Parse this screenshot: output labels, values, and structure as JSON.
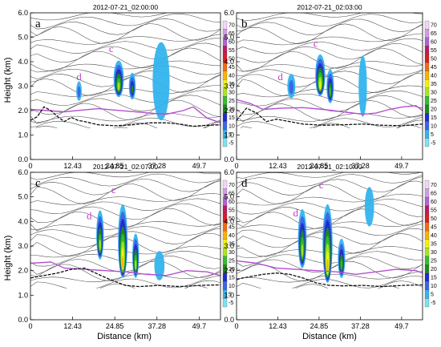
{
  "figure": {
    "y_axis_label": "Height (km)",
    "x_axis_label": "Distance (km)",
    "x_ticks": [
      "0",
      "12.43",
      "24.85",
      "37.28",
      "49.7"
    ],
    "x_tick_values": [
      0,
      12.43,
      24.85,
      37.28,
      49.7
    ],
    "y_ticks": [
      "0.0",
      "1.0",
      "2.0",
      "3.0",
      "4.0",
      "5.0",
      "6.0"
    ],
    "y_tick_values": [
      0,
      1,
      2,
      3,
      4,
      5,
      6
    ]
  },
  "colorbar": {
    "labels": [
      "70",
      "65",
      "60",
      "55",
      "50",
      "45",
      "40",
      "35",
      "30",
      "25",
      "20",
      "15",
      "10",
      "5",
      "-5"
    ],
    "levels": [
      70,
      65,
      60,
      55,
      50,
      45,
      40,
      35,
      30,
      25,
      20,
      15,
      10,
      5,
      -5
    ],
    "colors": [
      "#f2d5f7",
      "#d59ae8",
      "#b061d6",
      "#c0185c",
      "#e01b1b",
      "#f56a10",
      "#f5b400",
      "#f2f20a",
      "#a9e61f",
      "#2fbf2a",
      "#1a8c1a",
      "#1f2bc9",
      "#3b64e6",
      "#32b4ee",
      "#7de2f2"
    ]
  },
  "chart_data": [
    {
      "type": "heatmap",
      "title": "2012-07-21_02:00:00",
      "panel_letter": "a",
      "cell_labels": [
        {
          "text": "c",
          "x": 23.8,
          "y": 4.4
        },
        {
          "text": "d",
          "x": 14.3,
          "y": 3.25
        }
      ],
      "xlabel": "Distance (km)",
      "ylabel": "Height (km)",
      "xlim": [
        0,
        56
      ],
      "ylim": [
        0,
        6
      ],
      "cells": [
        {
          "x": 26.0,
          "y": 3.3,
          "w": 3.0,
          "h": 1.5,
          "level": 30
        },
        {
          "x": 30.0,
          "y": 3.0,
          "w": 2.0,
          "h": 1.1,
          "level": 20
        },
        {
          "x": 14.3,
          "y": 2.8,
          "w": 1.6,
          "h": 0.8,
          "level": 10
        },
        {
          "x": 38.5,
          "y": 3.2,
          "w": 5.0,
          "h": 3.2,
          "level": 5
        }
      ],
      "pbl_line_pink": [
        [
          0,
          2.05
        ],
        [
          5,
          2.0
        ],
        [
          10,
          1.95
        ],
        [
          15,
          2.02
        ],
        [
          20,
          2.08
        ],
        [
          25,
          2.02
        ],
        [
          30,
          1.96
        ],
        [
          35,
          1.9
        ],
        [
          40,
          1.85
        ],
        [
          45,
          2.0
        ],
        [
          48,
          2.15
        ],
        [
          52,
          1.7
        ],
        [
          56,
          1.5
        ]
      ],
      "pbl_line_black": [
        [
          0,
          1.6
        ],
        [
          2,
          1.75
        ],
        [
          4,
          2.15
        ],
        [
          6,
          2.0
        ],
        [
          8,
          1.75
        ],
        [
          10,
          1.55
        ],
        [
          12,
          1.72
        ],
        [
          14,
          1.6
        ],
        [
          16,
          1.55
        ],
        [
          20,
          1.42
        ],
        [
          25,
          1.38
        ],
        [
          30,
          1.42
        ],
        [
          35,
          1.5
        ],
        [
          40,
          1.5
        ],
        [
          44,
          1.45
        ],
        [
          48,
          1.36
        ],
        [
          52,
          1.4
        ],
        [
          56,
          1.42
        ]
      ]
    },
    {
      "type": "heatmap",
      "title": "2012-07-21_02:03:00",
      "panel_letter": "b",
      "cell_labels": [
        {
          "text": "c",
          "x": 23.8,
          "y": 4.6
        },
        {
          "text": "d",
          "x": 13.2,
          "y": 3.25
        }
      ],
      "xlabel": "Distance (km)",
      "ylabel": "Height (km)",
      "xlim": [
        0,
        56
      ],
      "ylim": [
        0,
        6
      ],
      "cells": [
        {
          "x": 25.2,
          "y": 3.45,
          "w": 3.0,
          "h": 1.7,
          "level": 35
        },
        {
          "x": 28.2,
          "y": 3.0,
          "w": 2.2,
          "h": 1.4,
          "level": 25
        },
        {
          "x": 16.5,
          "y": 3.0,
          "w": 2.4,
          "h": 1.0,
          "level": 10
        },
        {
          "x": 38.0,
          "y": 3.0,
          "w": 2.5,
          "h": 2.5,
          "level": 5
        }
      ],
      "pbl_line_pink": [
        [
          0,
          2.45
        ],
        [
          4,
          2.3
        ],
        [
          8,
          2.05
        ],
        [
          14,
          2.1
        ],
        [
          20,
          2.12
        ],
        [
          26,
          2.05
        ],
        [
          32,
          1.95
        ],
        [
          38,
          1.85
        ],
        [
          42,
          1.9
        ],
        [
          46,
          2.05
        ],
        [
          50,
          2.15
        ],
        [
          54,
          2.2
        ],
        [
          56,
          2.0
        ]
      ],
      "pbl_line_black": [
        [
          0,
          1.6
        ],
        [
          3,
          2.1
        ],
        [
          6,
          1.9
        ],
        [
          9,
          1.55
        ],
        [
          12,
          1.65
        ],
        [
          16,
          1.55
        ],
        [
          20,
          1.45
        ],
        [
          26,
          1.4
        ],
        [
          32,
          1.42
        ],
        [
          38,
          1.45
        ],
        [
          44,
          1.4
        ],
        [
          50,
          1.38
        ],
        [
          56,
          1.45
        ]
      ]
    },
    {
      "type": "heatmap",
      "title": "2012-07-21_02:07:00",
      "panel_letter": "c",
      "cell_labels": [
        {
          "text": "c",
          "x": 24.5,
          "y": 5.15
        },
        {
          "text": "d",
          "x": 17.3,
          "y": 4.1
        }
      ],
      "xlabel": "Distance (km)",
      "ylabel": "Height (km)",
      "xlim": [
        0,
        56
      ],
      "ylim": [
        0,
        6
      ],
      "cells": [
        {
          "x": 20.5,
          "y": 3.45,
          "w": 2.2,
          "h": 2.0,
          "level": 30
        },
        {
          "x": 27.2,
          "y": 3.2,
          "w": 2.8,
          "h": 3.0,
          "level": 40
        },
        {
          "x": 31.0,
          "y": 2.6,
          "w": 2.0,
          "h": 1.8,
          "level": 30
        },
        {
          "x": 38.0,
          "y": 2.2,
          "w": 3.0,
          "h": 1.2,
          "level": 5
        }
      ],
      "pbl_line_pink": [
        [
          0,
          2.3
        ],
        [
          6,
          2.35
        ],
        [
          10,
          2.1
        ],
        [
          16,
          2.05
        ],
        [
          22,
          2.0
        ],
        [
          28,
          1.95
        ],
        [
          34,
          1.85
        ],
        [
          40,
          1.8
        ],
        [
          46,
          2.0
        ],
        [
          52,
          1.95
        ],
        [
          56,
          1.8
        ]
      ],
      "pbl_line_black": [
        [
          0,
          1.7
        ],
        [
          4,
          1.8
        ],
        [
          8,
          1.9
        ],
        [
          12,
          2.05
        ],
        [
          16,
          2.1
        ],
        [
          20,
          1.85
        ],
        [
          24,
          1.6
        ],
        [
          28,
          1.4
        ],
        [
          32,
          1.35
        ],
        [
          38,
          1.4
        ],
        [
          44,
          1.35
        ],
        [
          50,
          1.4
        ],
        [
          56,
          1.42
        ]
      ]
    },
    {
      "type": "heatmap",
      "title": "2012-07-21_02:10:00",
      "panel_letter": "d",
      "cell_labels": [
        {
          "text": "c",
          "x": 25.5,
          "y": 5.35
        },
        {
          "text": "d",
          "x": 17.8,
          "y": 4.2
        }
      ],
      "xlabel": "Distance (km)",
      "ylabel": "Height (km)",
      "xlim": [
        0,
        56
      ],
      "ylim": [
        0,
        6
      ],
      "cells": [
        {
          "x": 19.8,
          "y": 3.3,
          "w": 2.6,
          "h": 2.4,
          "level": 30
        },
        {
          "x": 27.4,
          "y": 3.1,
          "w": 3.0,
          "h": 3.2,
          "level": 40
        },
        {
          "x": 31.6,
          "y": 2.5,
          "w": 2.2,
          "h": 1.6,
          "level": 25
        },
        {
          "x": 40.0,
          "y": 4.6,
          "w": 2.8,
          "h": 1.6,
          "level": 5
        }
      ],
      "pbl_line_pink": [
        [
          0,
          2.4
        ],
        [
          6,
          2.3
        ],
        [
          12,
          2.1
        ],
        [
          18,
          2.05
        ],
        [
          24,
          2.0
        ],
        [
          30,
          1.95
        ],
        [
          36,
          1.85
        ],
        [
          42,
          1.95
        ],
        [
          48,
          2.05
        ],
        [
          54,
          2.0
        ],
        [
          56,
          1.9
        ]
      ],
      "pbl_line_black": [
        [
          0,
          1.65
        ],
        [
          4,
          1.75
        ],
        [
          8,
          1.85
        ],
        [
          12,
          1.9
        ],
        [
          16,
          1.85
        ],
        [
          20,
          1.7
        ],
        [
          24,
          1.5
        ],
        [
          28,
          1.4
        ],
        [
          32,
          1.38
        ],
        [
          38,
          1.4
        ],
        [
          44,
          1.35
        ],
        [
          50,
          1.4
        ],
        [
          56,
          1.42
        ]
      ]
    }
  ]
}
